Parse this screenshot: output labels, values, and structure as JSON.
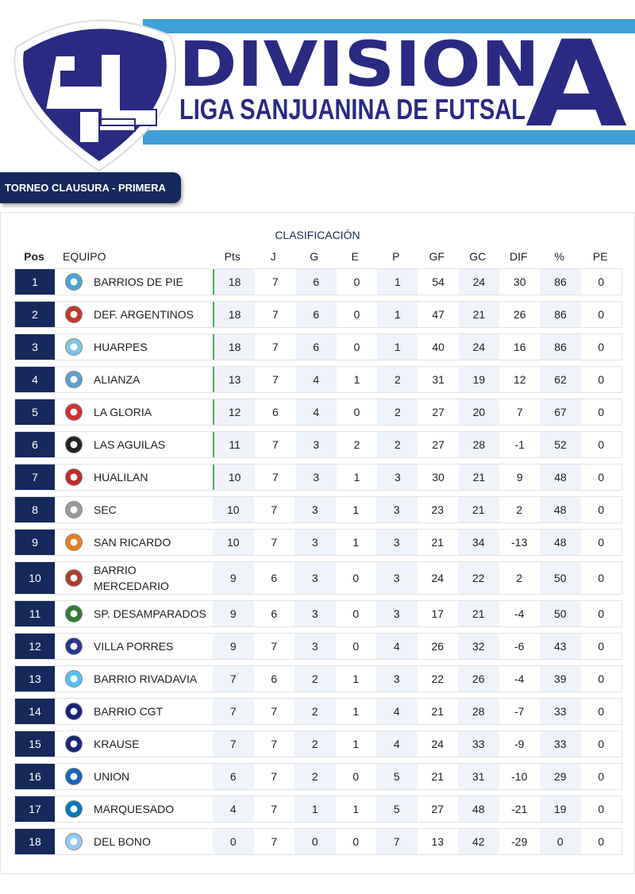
{
  "header": {
    "title": "DIVISION",
    "letter": "A",
    "league": "LIGA SANJUANINA DE FUTSAL"
  },
  "tab": "TORNEO CLAUSURA - PRIMERA",
  "table": {
    "title": "CLASIFICACIÓN",
    "columns": [
      "Pos",
      "EQUIPO",
      "Pts",
      "J",
      "G",
      "E",
      "P",
      "GF",
      "GC",
      "DIF",
      "%",
      "PE"
    ],
    "rows": [
      [
        1,
        "BARRIOS DE PIE",
        18,
        7,
        6,
        0,
        1,
        54,
        24,
        30,
        86,
        0
      ],
      [
        2,
        "DEF. ARGENTINOS",
        18,
        7,
        6,
        0,
        1,
        47,
        21,
        26,
        86,
        0
      ],
      [
        3,
        "HUARPES",
        18,
        7,
        6,
        0,
        1,
        40,
        24,
        16,
        86,
        0
      ],
      [
        4,
        "ALIANZA",
        13,
        7,
        4,
        1,
        2,
        31,
        19,
        12,
        62,
        0
      ],
      [
        5,
        "LA GLORIA",
        12,
        6,
        4,
        0,
        2,
        27,
        20,
        7,
        67,
        0
      ],
      [
        6,
        "LAS AGUILAS",
        11,
        7,
        3,
        2,
        2,
        27,
        28,
        -1,
        52,
        0
      ],
      [
        7,
        "HUALILAN",
        10,
        7,
        3,
        1,
        3,
        30,
        21,
        9,
        48,
        0
      ],
      [
        8,
        "SEC",
        10,
        7,
        3,
        1,
        3,
        23,
        21,
        2,
        48,
        0
      ],
      [
        9,
        "SAN RICARDO",
        10,
        7,
        3,
        1,
        3,
        21,
        34,
        -13,
        48,
        0
      ],
      [
        10,
        "BARRIO MERCEDARIO",
        9,
        6,
        3,
        0,
        3,
        24,
        22,
        2,
        50,
        0
      ],
      [
        11,
        "SP. DESAMPARADOS",
        9,
        6,
        3,
        0,
        3,
        17,
        21,
        -4,
        50,
        0
      ],
      [
        12,
        "VILLA PORRES",
        9,
        7,
        3,
        0,
        4,
        26,
        32,
        -6,
        43,
        0
      ],
      [
        13,
        "BARRIO RIVADAVIA",
        7,
        6,
        2,
        1,
        3,
        22,
        26,
        -4,
        39,
        0
      ],
      [
        14,
        "BARRIO CGT",
        7,
        7,
        2,
        1,
        4,
        21,
        28,
        -7,
        33,
        0
      ],
      [
        15,
        "KRAUSE",
        7,
        7,
        2,
        1,
        4,
        24,
        33,
        -9,
        33,
        0
      ],
      [
        16,
        "UNION",
        6,
        7,
        2,
        0,
        5,
        21,
        31,
        -10,
        29,
        0
      ],
      [
        17,
        "MARQUESADO",
        4,
        7,
        1,
        1,
        5,
        27,
        48,
        -21,
        19,
        0
      ],
      [
        18,
        "DEL BONO",
        0,
        7,
        0,
        0,
        7,
        13,
        42,
        -29,
        0,
        0
      ]
    ]
  }
}
